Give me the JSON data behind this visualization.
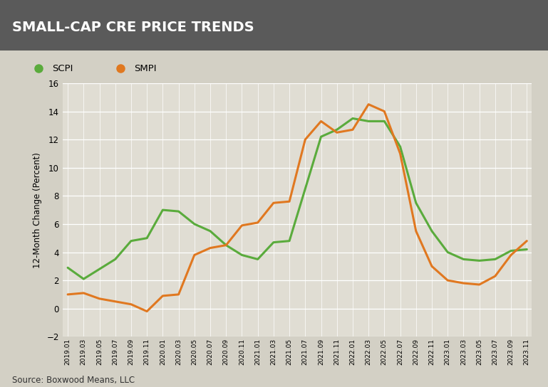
{
  "title": "SMALL-CAP CRE PRICE TRENDS",
  "title_bg_color": "#5a5a5a",
  "title_text_color": "#ffffff",
  "bg_color": "#d3d0c5",
  "plot_bg_color": "#e0ddd3",
  "ylabel": "12-Month Change (Percent)",
  "source": "Source: Boxwood Means, LLC",
  "legend": [
    "SCPI",
    "SMPI"
  ],
  "scpi_color": "#5aab3c",
  "smpi_color": "#e07820",
  "line_width": 2.2,
  "ylim": [
    -2,
    16
  ],
  "yticks": [
    -2,
    0,
    2,
    4,
    6,
    8,
    10,
    12,
    14,
    16
  ],
  "x_labels": [
    "2019.01",
    "2019.03",
    "2019.05",
    "2019.07",
    "2019.09",
    "2019.11",
    "2020.01",
    "2020.03",
    "2020.05",
    "2020.07",
    "2020.09",
    "2020.11",
    "2021.01",
    "2021.03",
    "2021.05",
    "2021.07",
    "2021.09",
    "2021.11",
    "2022.01",
    "2022.03",
    "2022.05",
    "2022.07",
    "2022.09",
    "2022.11",
    "2023.01",
    "2023.03",
    "2023.05",
    "2023.07",
    "2023.09",
    "2023.11"
  ],
  "scpi_values": [
    2.9,
    2.1,
    2.8,
    3.5,
    4.8,
    5.0,
    7.0,
    6.9,
    6.0,
    5.5,
    4.5,
    3.8,
    3.5,
    4.7,
    4.8,
    8.5,
    12.2,
    12.7,
    13.5,
    13.3,
    13.3,
    11.5,
    7.5,
    5.5,
    4.0,
    3.5,
    3.4,
    3.5,
    4.1,
    4.2
  ],
  "smpi_values": [
    1.0,
    1.1,
    0.7,
    0.5,
    0.3,
    -0.2,
    0.9,
    1.0,
    3.8,
    4.3,
    4.5,
    5.9,
    6.1,
    7.5,
    7.6,
    12.0,
    13.3,
    12.5,
    12.7,
    14.5,
    14.0,
    11.0,
    5.5,
    3.0,
    2.0,
    1.8,
    1.7,
    2.3,
    3.8,
    4.8
  ]
}
